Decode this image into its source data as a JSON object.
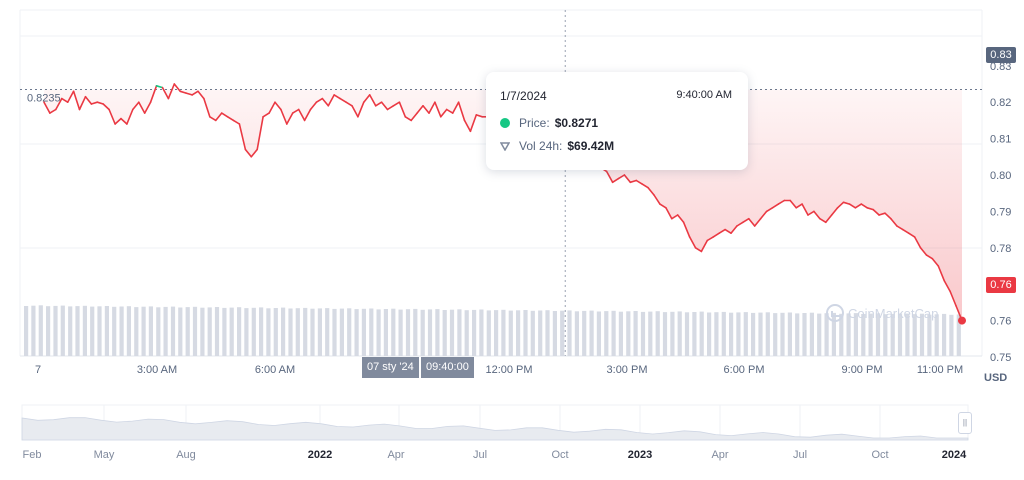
{
  "chart_data": {
    "type": "line",
    "y_unit": "USD",
    "ylim": [
      0.74,
      0.84
    ],
    "y_ticks": [
      "0.83",
      "0.82",
      "0.81",
      "0.80",
      "0.79",
      "0.78",
      "0.77",
      "0.76",
      "0.75"
    ],
    "x_ticks": [
      "7",
      "3:00 AM",
      "6:00 AM",
      "12:00 PM",
      "3:00 PM",
      "6:00 PM",
      "9:00 PM",
      "11:00 PM"
    ],
    "reference_line_label": "0.8235",
    "reference_value": 0.8235,
    "series": [
      {
        "color_above": "#16c784",
        "color_below": "#ea3943",
        "values": [
          0.82,
          0.817,
          0.818,
          0.821,
          0.82,
          0.823,
          0.818,
          0.8215,
          0.8195,
          0.82,
          0.8195,
          0.818,
          0.814,
          0.8155,
          0.814,
          0.818,
          0.82,
          0.817,
          0.82,
          0.8245,
          0.824,
          0.821,
          0.825,
          0.823,
          0.8225,
          0.822,
          0.823,
          0.821,
          0.816,
          0.815,
          0.817,
          0.816,
          0.815,
          0.814,
          0.807,
          0.805,
          0.807,
          0.816,
          0.817,
          0.82,
          0.818,
          0.814,
          0.817,
          0.818,
          0.815,
          0.818,
          0.82,
          0.821,
          0.819,
          0.822,
          0.821,
          0.82,
          0.819,
          0.816,
          0.82,
          0.822,
          0.819,
          0.82,
          0.818,
          0.819,
          0.82,
          0.816,
          0.815,
          0.817,
          0.819,
          0.817,
          0.82,
          0.816,
          0.818,
          0.817,
          0.82,
          0.815,
          0.812,
          0.8165,
          0.816,
          0.816,
          0.815,
          0.8165,
          0.8145,
          0.814,
          0.816,
          0.814,
          0.815,
          0.8155,
          0.817,
          0.817,
          0.82,
          0.823,
          0.8271,
          0.813,
          0.809,
          0.811,
          0.806,
          0.804,
          0.802,
          0.801,
          0.798,
          0.799,
          0.8,
          0.798,
          0.7985,
          0.7975,
          0.7965,
          0.7945,
          0.792,
          0.791,
          0.788,
          0.789,
          0.787,
          0.783,
          0.78,
          0.779,
          0.782,
          0.783,
          0.784,
          0.785,
          0.784,
          0.786,
          0.787,
          0.788,
          0.786,
          0.788,
          0.79,
          0.791,
          0.792,
          0.793,
          0.793,
          0.791,
          0.792,
          0.789,
          0.79,
          0.788,
          0.787,
          0.789,
          0.791,
          0.7925,
          0.792,
          0.791,
          0.792,
          0.791,
          0.7905,
          0.789,
          0.7895,
          0.788,
          0.786,
          0.785,
          0.784,
          0.783,
          0.78,
          0.778,
          0.777,
          0.775,
          0.771,
          0.768,
          0.764,
          0.76
        ]
      }
    ],
    "volume_bars": 128,
    "volume_label": "Vol 24h",
    "crosshair": {
      "date": "1/7/2024",
      "time": "9:40:00 AM",
      "price": "$0.8271",
      "volume": "$69.42M",
      "x_date_label": "07 sty '24",
      "x_time_label": "09:40:00"
    },
    "last_price_label": "0.76",
    "current_price_label": "0.83",
    "watermark": "CoinMarketCap",
    "navigator_ticks": [
      "Feb",
      "May",
      "Aug",
      "2022",
      "Apr",
      "Jul",
      "Oct",
      "2023",
      "Apr",
      "Jul",
      "Oct",
      "2024"
    ]
  },
  "tooltip": {
    "date": "1/7/2024",
    "time": "9:40:00 AM",
    "price_label": "Price:",
    "price_value": "$0.8271",
    "vol_label": "Vol 24h:",
    "vol_value": "$69.42M"
  },
  "axis_unit": "USD",
  "colors": {
    "up": "#16c784",
    "down": "#ea3943",
    "grid": "#eff2f5",
    "muted": "#808a9d"
  }
}
